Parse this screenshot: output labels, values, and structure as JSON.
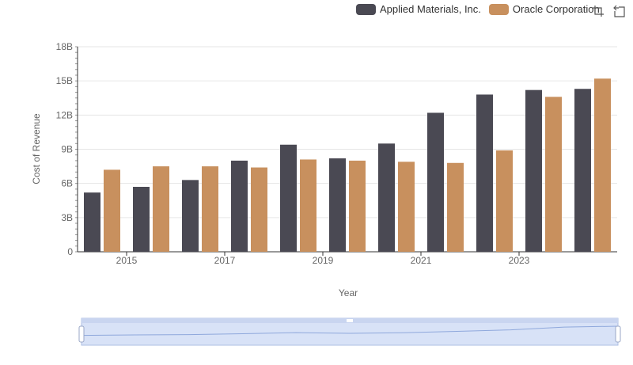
{
  "colors": {
    "series1": "#4a4953",
    "series2": "#c8905e",
    "grid": "#e6e6e6",
    "axis": "#333333",
    "zoom_fill": "#d8e2f7",
    "zoom_border": "#aebfe3"
  },
  "toolbar": {
    "icons": [
      "zoom-icon",
      "zoom-reset-icon"
    ]
  },
  "chart_data": {
    "type": "bar",
    "title": "",
    "xlabel": "Year",
    "ylabel": "Cost of Revenue",
    "x": [
      2014,
      2015,
      2016,
      2017,
      2018,
      2019,
      2020,
      2021,
      2022,
      2023,
      2024
    ],
    "x_tick_labels": [
      "2015",
      "2017",
      "2019",
      "2021",
      "2023"
    ],
    "y_tick_labels": [
      "0",
      "3B",
      "6B",
      "9B",
      "12B",
      "15B",
      "18B"
    ],
    "ylim": [
      0,
      18000000000
    ],
    "grid": true,
    "legend_position": "top-right",
    "series": [
      {
        "name": "Applied Materials, Inc.",
        "values": [
          5200000000,
          5700000000,
          6300000000,
          8000000000,
          9400000000,
          8200000000,
          9500000000,
          12200000000,
          13800000000,
          14200000000,
          14300000000
        ]
      },
      {
        "name": "Oracle Corporation",
        "values": [
          7200000000,
          7500000000,
          7500000000,
          7400000000,
          8100000000,
          8000000000,
          7900000000,
          7800000000,
          8900000000,
          13600000000,
          15200000000
        ]
      }
    ]
  }
}
